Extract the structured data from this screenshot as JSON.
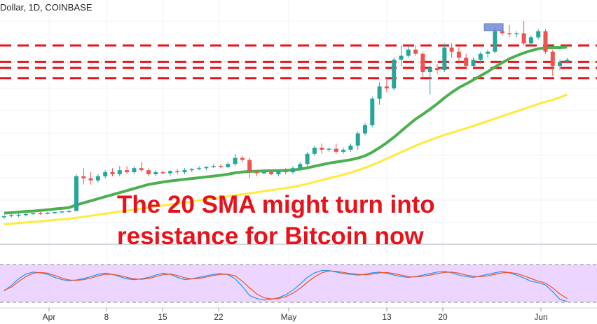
{
  "header": {
    "symbol_title": "Dollar, 1D, COINBASE"
  },
  "annotation": {
    "line1": "The 20 SMA might turn into",
    "line2": "resistance for Bitcoin now"
  },
  "colors": {
    "bull": "#26a69a",
    "bear": "#ef5350",
    "sma20": "#4caf50",
    "sma50": "#ffeb3b",
    "resistance": "#e8121b",
    "stoch_fill": "#e5c8ff",
    "stoch_k": "#2196f3",
    "stoch_d": "#f4511e",
    "annotation": "#e8121b"
  },
  "chart_data": [
    {
      "type": "candlestick",
      "x_tick_labels": [
        "Apr",
        "8",
        "15",
        "22",
        "May",
        "13",
        "20",
        "Jun"
      ],
      "ylim": [
        0,
        100
      ],
      "y_scale_note": "no price axis visible; values are relative levels",
      "resistance_levels": [
        88,
        80,
        77,
        72
      ],
      "candles": [
        {
          "o": 4,
          "h": 5,
          "l": 3,
          "c": 4.5
        },
        {
          "o": 4.5,
          "h": 5.5,
          "l": 4,
          "c": 5
        },
        {
          "o": 5,
          "h": 6,
          "l": 4,
          "c": 5.2
        },
        {
          "o": 5.2,
          "h": 6,
          "l": 4.5,
          "c": 5.5
        },
        {
          "o": 5.5,
          "h": 6,
          "l": 5,
          "c": 6
        },
        {
          "o": 6,
          "h": 6.5,
          "l": 5.2,
          "c": 5.8
        },
        {
          "o": 5.8,
          "h": 6.5,
          "l": 5.4,
          "c": 6.1
        },
        {
          "o": 6.1,
          "h": 6.8,
          "l": 5.5,
          "c": 6.5
        },
        {
          "o": 6.5,
          "h": 7,
          "l": 6,
          "c": 6.8
        },
        {
          "o": 6.8,
          "h": 7.5,
          "l": 6.2,
          "c": 7
        },
        {
          "o": 7,
          "h": 25,
          "l": 7,
          "c": 24
        },
        {
          "o": 24,
          "h": 28,
          "l": 20,
          "c": 23
        },
        {
          "o": 23,
          "h": 26,
          "l": 20,
          "c": 22
        },
        {
          "o": 22,
          "h": 25,
          "l": 21,
          "c": 24
        },
        {
          "o": 24,
          "h": 27,
          "l": 23,
          "c": 26
        },
        {
          "o": 26,
          "h": 28,
          "l": 24,
          "c": 25
        },
        {
          "o": 25,
          "h": 29,
          "l": 24,
          "c": 27
        },
        {
          "o": 27,
          "h": 29,
          "l": 25,
          "c": 26
        },
        {
          "o": 26,
          "h": 29,
          "l": 25,
          "c": 28
        },
        {
          "o": 28,
          "h": 31,
          "l": 26,
          "c": 27
        },
        {
          "o": 27,
          "h": 28,
          "l": 24,
          "c": 25
        },
        {
          "o": 25,
          "h": 27,
          "l": 24,
          "c": 26
        },
        {
          "o": 26,
          "h": 27,
          "l": 25,
          "c": 25.5
        },
        {
          "o": 25.5,
          "h": 27,
          "l": 24,
          "c": 26.5
        },
        {
          "o": 26.5,
          "h": 27.5,
          "l": 25,
          "c": 26
        },
        {
          "o": 26,
          "h": 28,
          "l": 25,
          "c": 27
        },
        {
          "o": 27,
          "h": 28,
          "l": 26,
          "c": 27.5
        },
        {
          "o": 27.5,
          "h": 29,
          "l": 27,
          "c": 28
        },
        {
          "o": 28,
          "h": 29,
          "l": 27,
          "c": 28.5
        },
        {
          "o": 28.5,
          "h": 30,
          "l": 28,
          "c": 29
        },
        {
          "o": 29,
          "h": 30,
          "l": 28,
          "c": 28.5
        },
        {
          "o": 28.5,
          "h": 31,
          "l": 28,
          "c": 30
        },
        {
          "o": 30,
          "h": 35,
          "l": 29,
          "c": 33
        },
        {
          "o": 33,
          "h": 34,
          "l": 31,
          "c": 32
        },
        {
          "o": 32,
          "h": 33,
          "l": 23,
          "c": 26
        },
        {
          "o": 26,
          "h": 27,
          "l": 24,
          "c": 25.5
        },
        {
          "o": 25.5,
          "h": 27,
          "l": 25,
          "c": 26
        },
        {
          "o": 26,
          "h": 26.5,
          "l": 24.5,
          "c": 25
        },
        {
          "o": 25,
          "h": 27,
          "l": 24,
          "c": 26.5
        },
        {
          "o": 26.5,
          "h": 28,
          "l": 25,
          "c": 26
        },
        {
          "o": 26,
          "h": 29,
          "l": 25,
          "c": 28
        },
        {
          "o": 28,
          "h": 31,
          "l": 27,
          "c": 30
        },
        {
          "o": 30,
          "h": 36,
          "l": 29,
          "c": 35
        },
        {
          "o": 35,
          "h": 39,
          "l": 34,
          "c": 38
        },
        {
          "o": 38,
          "h": 40,
          "l": 35,
          "c": 37
        },
        {
          "o": 37,
          "h": 38,
          "l": 36,
          "c": 37.5
        },
        {
          "o": 37.5,
          "h": 40,
          "l": 35,
          "c": 36
        },
        {
          "o": 36,
          "h": 38,
          "l": 35,
          "c": 37
        },
        {
          "o": 37,
          "h": 40,
          "l": 36,
          "c": 39
        },
        {
          "o": 39,
          "h": 46,
          "l": 37,
          "c": 45
        },
        {
          "o": 45,
          "h": 50,
          "l": 44,
          "c": 49
        },
        {
          "o": 49,
          "h": 63,
          "l": 48,
          "c": 62
        },
        {
          "o": 62,
          "h": 70,
          "l": 59,
          "c": 68
        },
        {
          "o": 68,
          "h": 72,
          "l": 65,
          "c": 67
        },
        {
          "o": 67,
          "h": 82,
          "l": 66,
          "c": 81
        },
        {
          "o": 81,
          "h": 88,
          "l": 78,
          "c": 83
        },
        {
          "o": 83,
          "h": 88,
          "l": 82,
          "c": 86
        },
        {
          "o": 86,
          "h": 88,
          "l": 83,
          "c": 84
        },
        {
          "o": 84,
          "h": 85,
          "l": 72,
          "c": 75
        },
        {
          "o": 75,
          "h": 78,
          "l": 64,
          "c": 77
        },
        {
          "o": 77,
          "h": 79,
          "l": 74,
          "c": 76
        },
        {
          "o": 76,
          "h": 89,
          "l": 75,
          "c": 87
        },
        {
          "o": 87,
          "h": 89,
          "l": 82,
          "c": 85
        },
        {
          "o": 85,
          "h": 87,
          "l": 80,
          "c": 82
        },
        {
          "o": 82,
          "h": 84,
          "l": 77,
          "c": 78
        },
        {
          "o": 78,
          "h": 82,
          "l": 77,
          "c": 81
        },
        {
          "o": 81,
          "h": 85,
          "l": 79,
          "c": 84
        },
        {
          "o": 84,
          "h": 86,
          "l": 82,
          "c": 85
        },
        {
          "o": 85,
          "h": 97,
          "l": 84,
          "c": 95
        },
        {
          "o": 95,
          "h": 96,
          "l": 93,
          "c": 94
        },
        {
          "o": 94,
          "h": 98,
          "l": 92,
          "c": 93.5
        },
        {
          "o": 93.5,
          "h": 95,
          "l": 92,
          "c": 94
        },
        {
          "o": 94,
          "h": 100,
          "l": 88,
          "c": 89
        },
        {
          "o": 89,
          "h": 93,
          "l": 88,
          "c": 92
        },
        {
          "o": 92,
          "h": 96,
          "l": 91,
          "c": 95
        },
        {
          "o": 95,
          "h": 96,
          "l": 84,
          "c": 85
        },
        {
          "o": 85,
          "h": 86,
          "l": 73,
          "c": 78
        },
        {
          "o": 78,
          "h": 81,
          "l": 76,
          "c": 80
        },
        {
          "o": 80,
          "h": 82,
          "l": 79,
          "c": 81
        }
      ],
      "sma20": [
        6,
        6.2,
        6.5,
        6.8,
        7,
        7.3,
        7.6,
        8,
        8.3,
        8.7,
        10,
        11,
        12,
        13,
        14,
        15,
        16,
        17,
        18,
        19,
        20,
        20.6,
        21.2,
        21.7,
        22.1,
        22.5,
        22.9,
        23.3,
        23.7,
        24.1,
        24.5,
        25,
        25.7,
        26.1,
        26.4,
        26.5,
        26.6,
        26.7,
        26.8,
        26.9,
        27.1,
        27.5,
        28.1,
        28.9,
        29.7,
        30.4,
        31,
        31.5,
        32.1,
        32.9,
        34,
        35.8,
        38,
        40.4,
        43.1,
        46.1,
        49.1,
        52,
        54.3,
        56.8,
        59.5,
        62.4,
        65,
        67.4,
        69.2,
        71.2,
        73.2,
        75.2,
        77.5,
        79.6,
        81.5,
        83,
        84.4,
        85.5,
        86.4,
        86.9,
        87,
        87,
        87.2
      ],
      "sma50": [
        0.5,
        0.8,
        1.1,
        1.4,
        1.7,
        2,
        2.3,
        2.6,
        2.9,
        3.2,
        3.7,
        4.2,
        4.7,
        5.2,
        5.7,
        6.2,
        6.7,
        7.2,
        7.7,
        8.2,
        8.7,
        9.2,
        9.7,
        10.2,
        10.7,
        11.2,
        11.7,
        12.2,
        12.7,
        13.2,
        13.7,
        14.2,
        14.7,
        15.2,
        15.7,
        16.2,
        16.7,
        17.2,
        17.7,
        18.2,
        18.8,
        19.5,
        20.3,
        21.2,
        22.1,
        23,
        23.9,
        24.8,
        25.8,
        27,
        28.2,
        29.5,
        31,
        32.6,
        34.2,
        35.8,
        37.4,
        39,
        40.4,
        41.7,
        43,
        44.2,
        45.3,
        46.4,
        47.5,
        48.6,
        49.8,
        51,
        52.2,
        53.4,
        54.6,
        55.8,
        57,
        58.2,
        59.4,
        60.4,
        61.4,
        62.6,
        64
      ]
    },
    {
      "type": "line",
      "name": "stochastic",
      "ylim": [
        0,
        100
      ],
      "series": [
        {
          "values": [
            30,
            45,
            62,
            75,
            80,
            78,
            74,
            66,
            60,
            57,
            59,
            63,
            68,
            74,
            77,
            74,
            68,
            62,
            60,
            62,
            66,
            72,
            77,
            74,
            66,
            60,
            62,
            66,
            70,
            74,
            76,
            73,
            62,
            42,
            18,
            10,
            6,
            8,
            12,
            20,
            32,
            48,
            66,
            78,
            84,
            84,
            80,
            76,
            74,
            72,
            74,
            78,
            80,
            77,
            72,
            68,
            66,
            68,
            72,
            76,
            80,
            82,
            78,
            72,
            68,
            66,
            70,
            74,
            78,
            82,
            78,
            72,
            64,
            56,
            52,
            46,
            28,
            8,
            2
          ]
        },
        {
          "values": [
            32,
            40,
            55,
            68,
            77,
            79,
            77,
            71,
            64,
            59,
            58,
            60,
            64,
            70,
            74,
            74,
            71,
            66,
            62,
            61,
            63,
            68,
            73,
            75,
            71,
            65,
            62,
            63,
            67,
            71,
            74,
            74,
            70,
            56,
            38,
            22,
            12,
            9,
            10,
            15,
            24,
            37,
            53,
            67,
            78,
            83,
            82,
            79,
            76,
            74,
            73,
            75,
            78,
            79,
            76,
            72,
            68,
            67,
            69,
            72,
            76,
            79,
            80,
            77,
            72,
            69,
            68,
            70,
            74,
            78,
            79,
            76,
            70,
            63,
            56,
            51,
            38,
            22,
            10
          ]
        }
      ]
    }
  ]
}
